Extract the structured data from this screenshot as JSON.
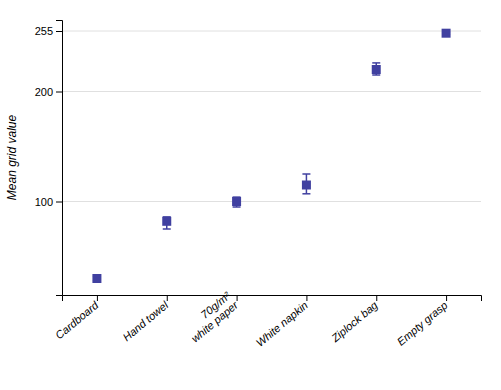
{
  "chart_data": {
    "type": "errorbar",
    "categories": [
      "Cardboard",
      "Hand towel",
      "70g/m²\nwhite paper",
      "White napkin",
      "Ziplock bag",
      "Empty grasp"
    ],
    "values": [
      30,
      82,
      100,
      115,
      220,
      253
    ],
    "errors_lo": [
      2,
      7,
      5,
      8,
      5,
      1
    ],
    "errors_hi": [
      2,
      4,
      4,
      10,
      6,
      1
    ],
    "color": "#4040a0",
    "marker": "square",
    "ylabel": "Mean grid value",
    "ylim": [
      15,
      265
    ],
    "yticks": [
      100,
      200,
      255
    ],
    "grid": true
  }
}
